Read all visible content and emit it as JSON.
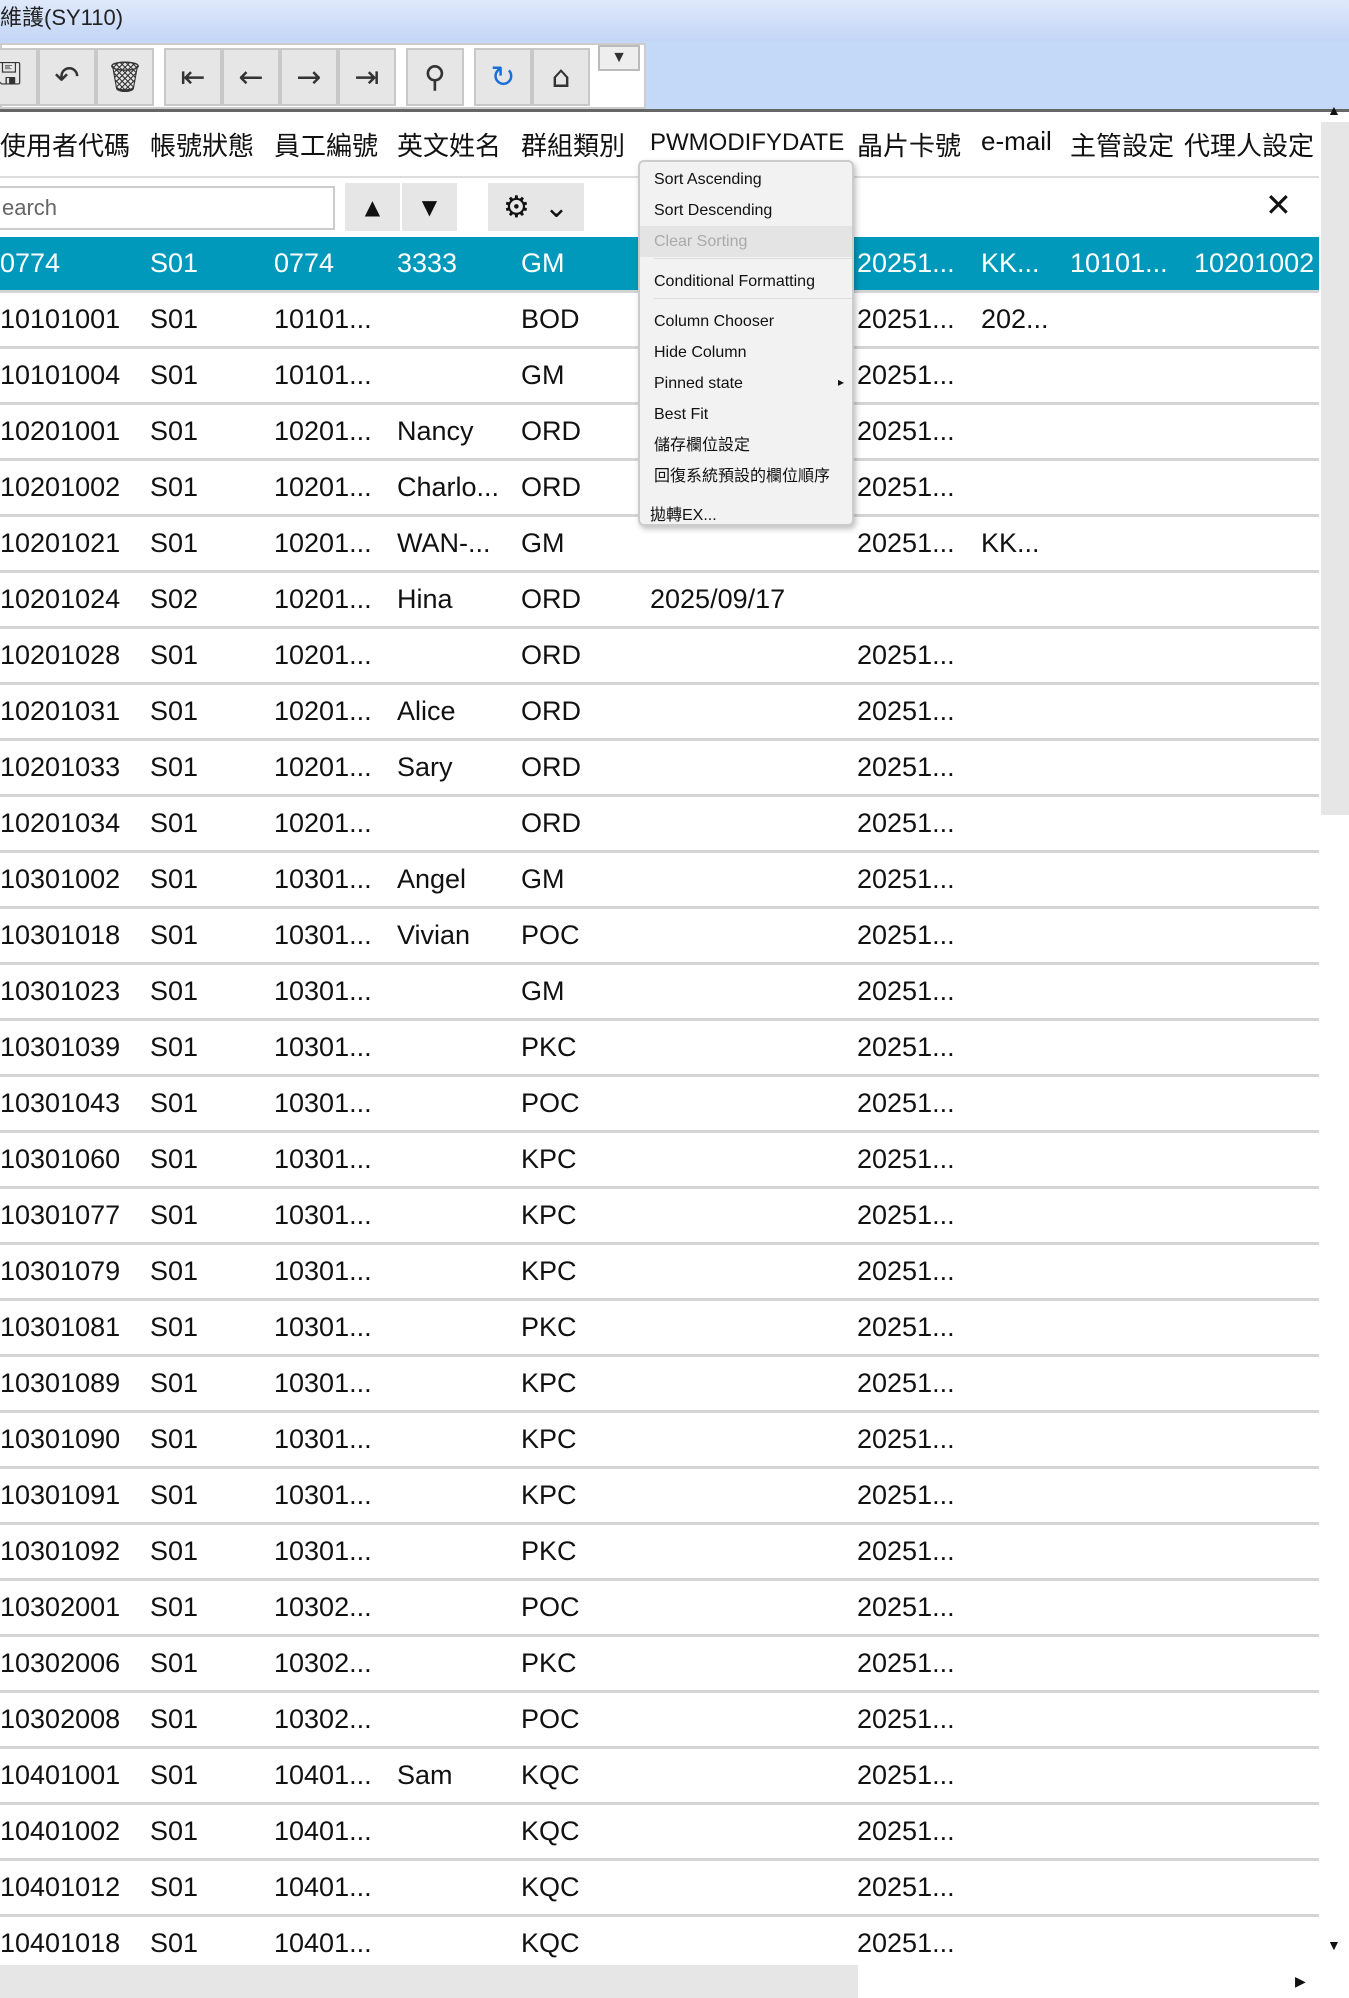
{
  "window": {
    "title": "維護(SY110)"
  },
  "toolbar": {
    "buttons": [
      {
        "name": "save-icon",
        "glyph": "🖫"
      },
      {
        "name": "undo-icon",
        "glyph": "↶"
      },
      {
        "name": "delete-icon",
        "glyph": "🗑"
      },
      {
        "name": "first-record-icon",
        "glyph": "⇤"
      },
      {
        "name": "previous-record-icon",
        "glyph": "←"
      },
      {
        "name": "next-record-icon",
        "glyph": "→"
      },
      {
        "name": "last-record-icon",
        "glyph": "⇥"
      },
      {
        "name": "search-icon",
        "glyph": "⚲"
      },
      {
        "name": "refresh-icon",
        "glyph": "↻"
      },
      {
        "name": "home-icon",
        "glyph": "⌂"
      }
    ],
    "dropdown_glyph": "▼"
  },
  "colors": {
    "selected_row": "#0099bb",
    "toolbar_bg": "#c4d9f8",
    "refresh_icon": "#1a6fd6"
  },
  "columns": [
    "使用者代碼",
    "帳號狀態",
    "員工編號",
    "英文姓名",
    "群組類別",
    "PWMODIFYDATE",
    "晶片卡號",
    "e-mail",
    "主管設定",
    "代理人設定"
  ],
  "search": {
    "placeholder": "earch",
    "up": "▲",
    "down": "▼",
    "gear": "⚙",
    "chevron": "⌄",
    "close": "✕"
  },
  "rows": [
    [
      "0774",
      "S01",
      "0774",
      "3333",
      "GM",
      "",
      "20251...",
      "KK...",
      "10101...",
      "10201002"
    ],
    [
      "10101001",
      "S01",
      "10101...",
      "",
      "BOD",
      "",
      "20251...",
      "202...",
      "",
      ""
    ],
    [
      "10101004",
      "S01",
      "10101...",
      "",
      "GM",
      "",
      "20251...",
      "",
      "",
      ""
    ],
    [
      "10201001",
      "S01",
      "10201...",
      "Nancy",
      "ORD",
      "",
      "20251...",
      "",
      "",
      ""
    ],
    [
      "10201002",
      "S01",
      "10201...",
      "Charlo...",
      "ORD",
      "",
      "20251...",
      "",
      "",
      ""
    ],
    [
      "10201021",
      "S01",
      "10201...",
      "WAN-...",
      "GM",
      "",
      "20251...",
      "KK...",
      "",
      ""
    ],
    [
      "10201024",
      "S02",
      "10201...",
      "Hina",
      "ORD",
      "2025/09/17",
      "",
      "",
      "",
      ""
    ],
    [
      "10201028",
      "S01",
      "10201...",
      "",
      "ORD",
      "",
      "20251...",
      "",
      "",
      ""
    ],
    [
      "10201031",
      "S01",
      "10201...",
      "Alice",
      "ORD",
      "",
      "20251...",
      "",
      "",
      ""
    ],
    [
      "10201033",
      "S01",
      "10201...",
      "Sary",
      "ORD",
      "",
      "20251...",
      "",
      "",
      ""
    ],
    [
      "10201034",
      "S01",
      "10201...",
      "",
      "ORD",
      "",
      "20251...",
      "",
      "",
      ""
    ],
    [
      "10301002",
      "S01",
      "10301...",
      "Angel",
      "GM",
      "",
      "20251...",
      "",
      "",
      ""
    ],
    [
      "10301018",
      "S01",
      "10301...",
      "Vivian",
      "POC",
      "",
      "20251...",
      "",
      "",
      ""
    ],
    [
      "10301023",
      "S01",
      "10301...",
      "",
      "GM",
      "",
      "20251...",
      "",
      "",
      ""
    ],
    [
      "10301039",
      "S01",
      "10301...",
      "",
      "PKC",
      "",
      "20251...",
      "",
      "",
      ""
    ],
    [
      "10301043",
      "S01",
      "10301...",
      "",
      "POC",
      "",
      "20251...",
      "",
      "",
      ""
    ],
    [
      "10301060",
      "S01",
      "10301...",
      "",
      "KPC",
      "",
      "20251...",
      "",
      "",
      ""
    ],
    [
      "10301077",
      "S01",
      "10301...",
      "",
      "KPC",
      "",
      "20251...",
      "",
      "",
      ""
    ],
    [
      "10301079",
      "S01",
      "10301...",
      "",
      "KPC",
      "",
      "20251...",
      "",
      "",
      ""
    ],
    [
      "10301081",
      "S01",
      "10301...",
      "",
      "PKC",
      "",
      "20251...",
      "",
      "",
      ""
    ],
    [
      "10301089",
      "S01",
      "10301...",
      "",
      "KPC",
      "",
      "20251...",
      "",
      "",
      ""
    ],
    [
      "10301090",
      "S01",
      "10301...",
      "",
      "KPC",
      "",
      "20251...",
      "",
      "",
      ""
    ],
    [
      "10301091",
      "S01",
      "10301...",
      "",
      "KPC",
      "",
      "20251...",
      "",
      "",
      ""
    ],
    [
      "10301092",
      "S01",
      "10301...",
      "",
      "PKC",
      "",
      "20251...",
      "",
      "",
      ""
    ],
    [
      "10302001",
      "S01",
      "10302...",
      "",
      "POC",
      "",
      "20251...",
      "",
      "",
      ""
    ],
    [
      "10302006",
      "S01",
      "10302...",
      "",
      "PKC",
      "",
      "20251...",
      "",
      "",
      ""
    ],
    [
      "10302008",
      "S01",
      "10302...",
      "",
      "POC",
      "",
      "20251...",
      "",
      "",
      ""
    ],
    [
      "10401001",
      "S01",
      "10401...",
      "Sam",
      "KQC",
      "",
      "20251...",
      "",
      "",
      ""
    ],
    [
      "10401002",
      "S01",
      "10401...",
      "",
      "KQC",
      "",
      "20251...",
      "",
      "",
      ""
    ],
    [
      "10401012",
      "S01",
      "10401...",
      "",
      "KQC",
      "",
      "20251...",
      "",
      "",
      ""
    ],
    [
      "10401018",
      "S01",
      "10401...",
      "",
      "KQC",
      "",
      "20251...",
      "",
      "",
      ""
    ]
  ],
  "context_menu": {
    "items": [
      {
        "label": "Sort Ascending",
        "disabled": false
      },
      {
        "label": "Sort Descending",
        "disabled": false
      },
      {
        "label": "Clear Sorting",
        "disabled": true
      },
      {
        "label": "Conditional Formatting",
        "disabled": false
      },
      {
        "label": "Column Chooser",
        "disabled": false
      },
      {
        "label": "Hide Column",
        "disabled": false
      },
      {
        "label": "Pinned state",
        "disabled": false,
        "submenu": true
      },
      {
        "label": "Best Fit",
        "disabled": false
      },
      {
        "label": "儲存欄位設定",
        "disabled": false
      },
      {
        "label": "回復系統預設的欄位順序",
        "disabled": false
      },
      {
        "label": "拋轉EX...",
        "disabled": false
      }
    ],
    "submenu_arrow": "▸"
  },
  "scrollbars": {
    "up": "▲",
    "down": "▼",
    "right": "▶"
  }
}
